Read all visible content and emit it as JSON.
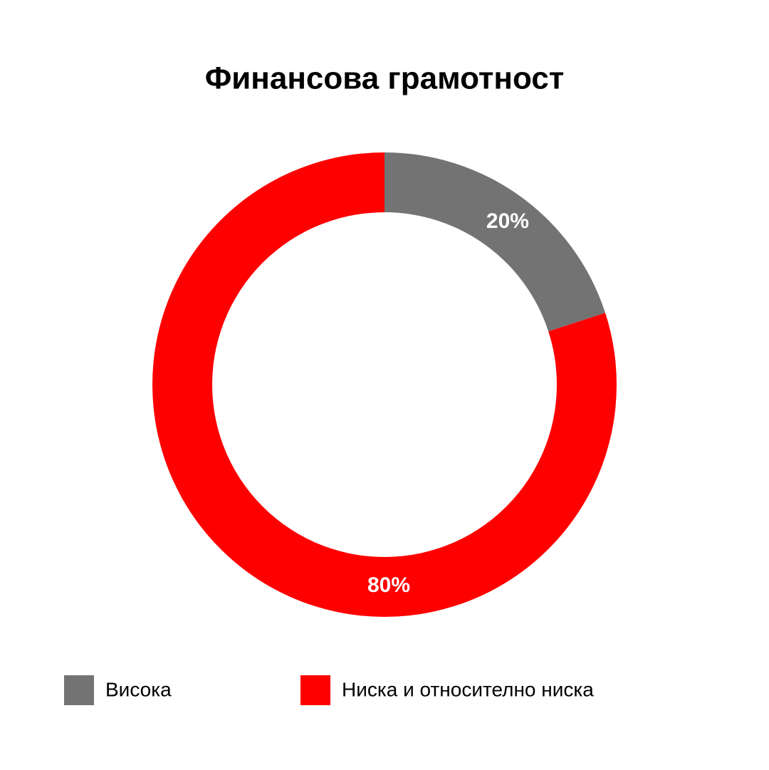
{
  "chart_data": {
    "type": "donut",
    "title": "Финансова грамотност",
    "categories": [
      "Висока",
      "Ниска и относително ниска"
    ],
    "values": [
      20,
      80
    ],
    "value_labels": [
      "20%",
      "80%"
    ],
    "colors": [
      "#737373",
      "#ff0000"
    ],
    "legend": "bottom"
  }
}
